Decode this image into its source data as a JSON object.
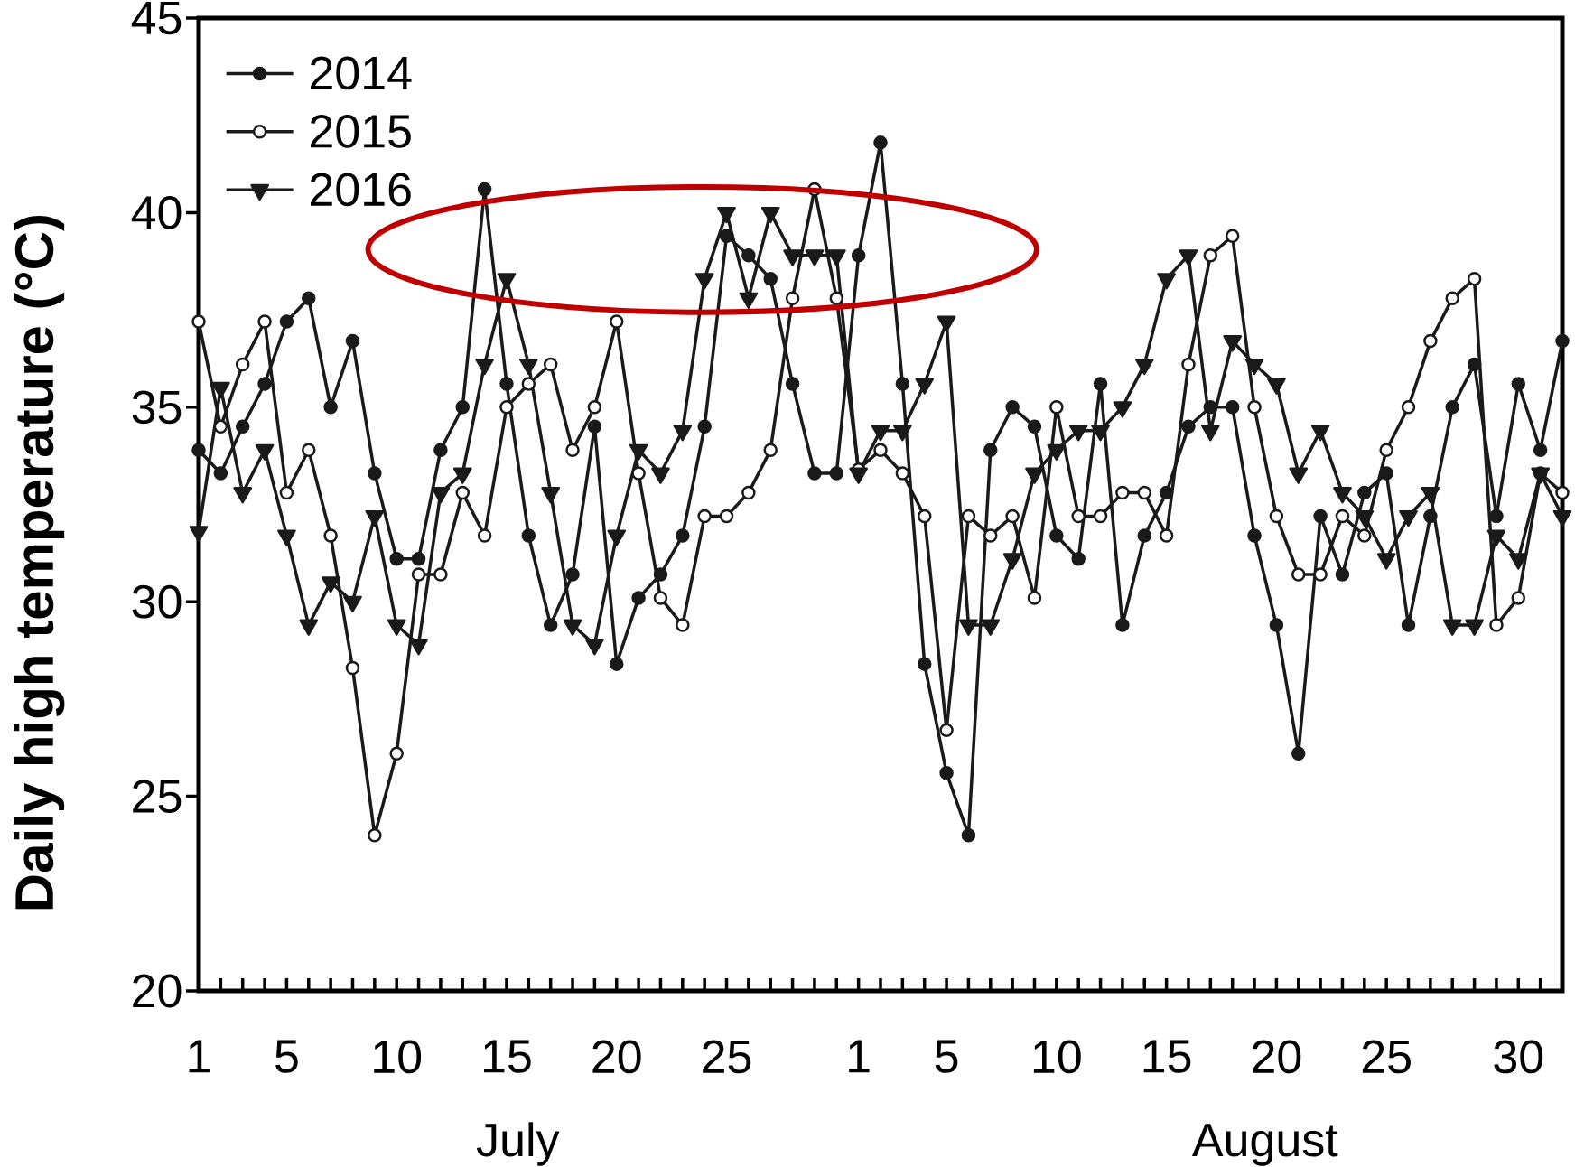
{
  "chart_data": {
    "type": "line",
    "ylabel": "Daily high temperature (°C)",
    "annotations": [
      "July",
      "August"
    ],
    "categories": [
      "1",
      null,
      null,
      null,
      "5",
      null,
      null,
      null,
      null,
      "10",
      null,
      null,
      null,
      null,
      "15",
      null,
      null,
      null,
      null,
      "20",
      null,
      null,
      null,
      null,
      "25",
      null,
      null,
      null,
      null,
      null,
      "1",
      null,
      null,
      null,
      "5",
      null,
      null,
      null,
      null,
      "10",
      null,
      null,
      null,
      null,
      "15",
      null,
      null,
      null,
      null,
      "20",
      null,
      null,
      null,
      null,
      "25",
      null,
      null,
      null,
      null,
      null,
      "30",
      null,
      null
    ],
    "series": [
      {
        "name": "2014",
        "color": "#1a1a1a",
        "marker": "circle",
        "values": [
          33.9,
          33.3,
          34.5,
          35.6,
          37.2,
          37.8,
          35.0,
          36.7,
          33.3,
          31.1,
          31.1,
          33.9,
          35.0,
          40.6,
          35.6,
          31.7,
          29.4,
          30.7,
          34.5,
          28.4,
          30.1,
          30.7,
          31.7,
          34.5,
          39.4,
          38.9,
          38.3,
          35.6,
          33.3,
          33.3,
          38.9,
          41.8,
          35.6,
          28.4,
          25.6,
          24.0,
          33.9,
          35.0,
          34.5,
          31.7,
          31.1,
          35.6,
          29.4,
          31.7,
          32.8,
          34.5,
          35.0,
          35.0,
          31.7,
          29.4,
          26.1,
          32.2,
          30.7,
          32.8,
          33.3,
          29.4,
          32.2,
          35.0,
          36.1,
          32.2,
          35.6,
          33.9,
          36.7
        ]
      },
      {
        "name": "2015",
        "color": "#1a1a1a",
        "marker": "circle",
        "values": [
          37.2,
          34.5,
          36.1,
          37.2,
          32.8,
          33.9,
          31.7,
          28.3,
          24.0,
          26.1,
          30.7,
          30.7,
          32.8,
          31.7,
          35.0,
          35.6,
          36.1,
          33.9,
          35.0,
          37.2,
          33.3,
          30.1,
          29.4,
          32.2,
          32.2,
          32.8,
          33.9,
          37.8,
          40.6,
          37.8,
          33.4,
          33.9,
          33.3,
          32.2,
          26.7,
          32.2,
          31.7,
          32.2,
          30.1,
          35.0,
          32.2,
          32.2,
          32.8,
          32.8,
          31.7,
          36.1,
          38.9,
          39.4,
          35.0,
          32.2,
          30.7,
          30.7,
          32.2,
          31.7,
          33.9,
          35.0,
          36.7,
          37.8,
          38.3,
          29.4,
          30.1,
          33.3,
          32.8
        ]
      },
      {
        "name": "2016",
        "color": "#1a1a1a",
        "marker": "triangle",
        "values": [
          31.8,
          35.5,
          32.8,
          33.9,
          31.7,
          29.4,
          30.5,
          30.0,
          32.2,
          29.4,
          28.9,
          32.8,
          33.3,
          36.1,
          38.3,
          36.1,
          32.8,
          29.4,
          28.9,
          31.7,
          33.9,
          33.3,
          34.4,
          38.3,
          40.0,
          37.8,
          40.0,
          38.9,
          38.9,
          38.9,
          33.3,
          34.4,
          34.4,
          35.6,
          37.2,
          29.4,
          29.4,
          31.1,
          33.3,
          33.9,
          34.4,
          34.4,
          35.0,
          36.1,
          38.3,
          38.9,
          34.4,
          36.7,
          36.1,
          35.6,
          33.3,
          34.4,
          32.8,
          32.2,
          31.1,
          32.2,
          32.8,
          29.4,
          29.4,
          31.7,
          31.1,
          33.3,
          32.2
        ]
      }
    ],
    "ylim": [
      20,
      45
    ],
    "yticks": [
      20,
      25,
      30,
      35,
      40,
      45
    ],
    "legend": "top left"
  }
}
